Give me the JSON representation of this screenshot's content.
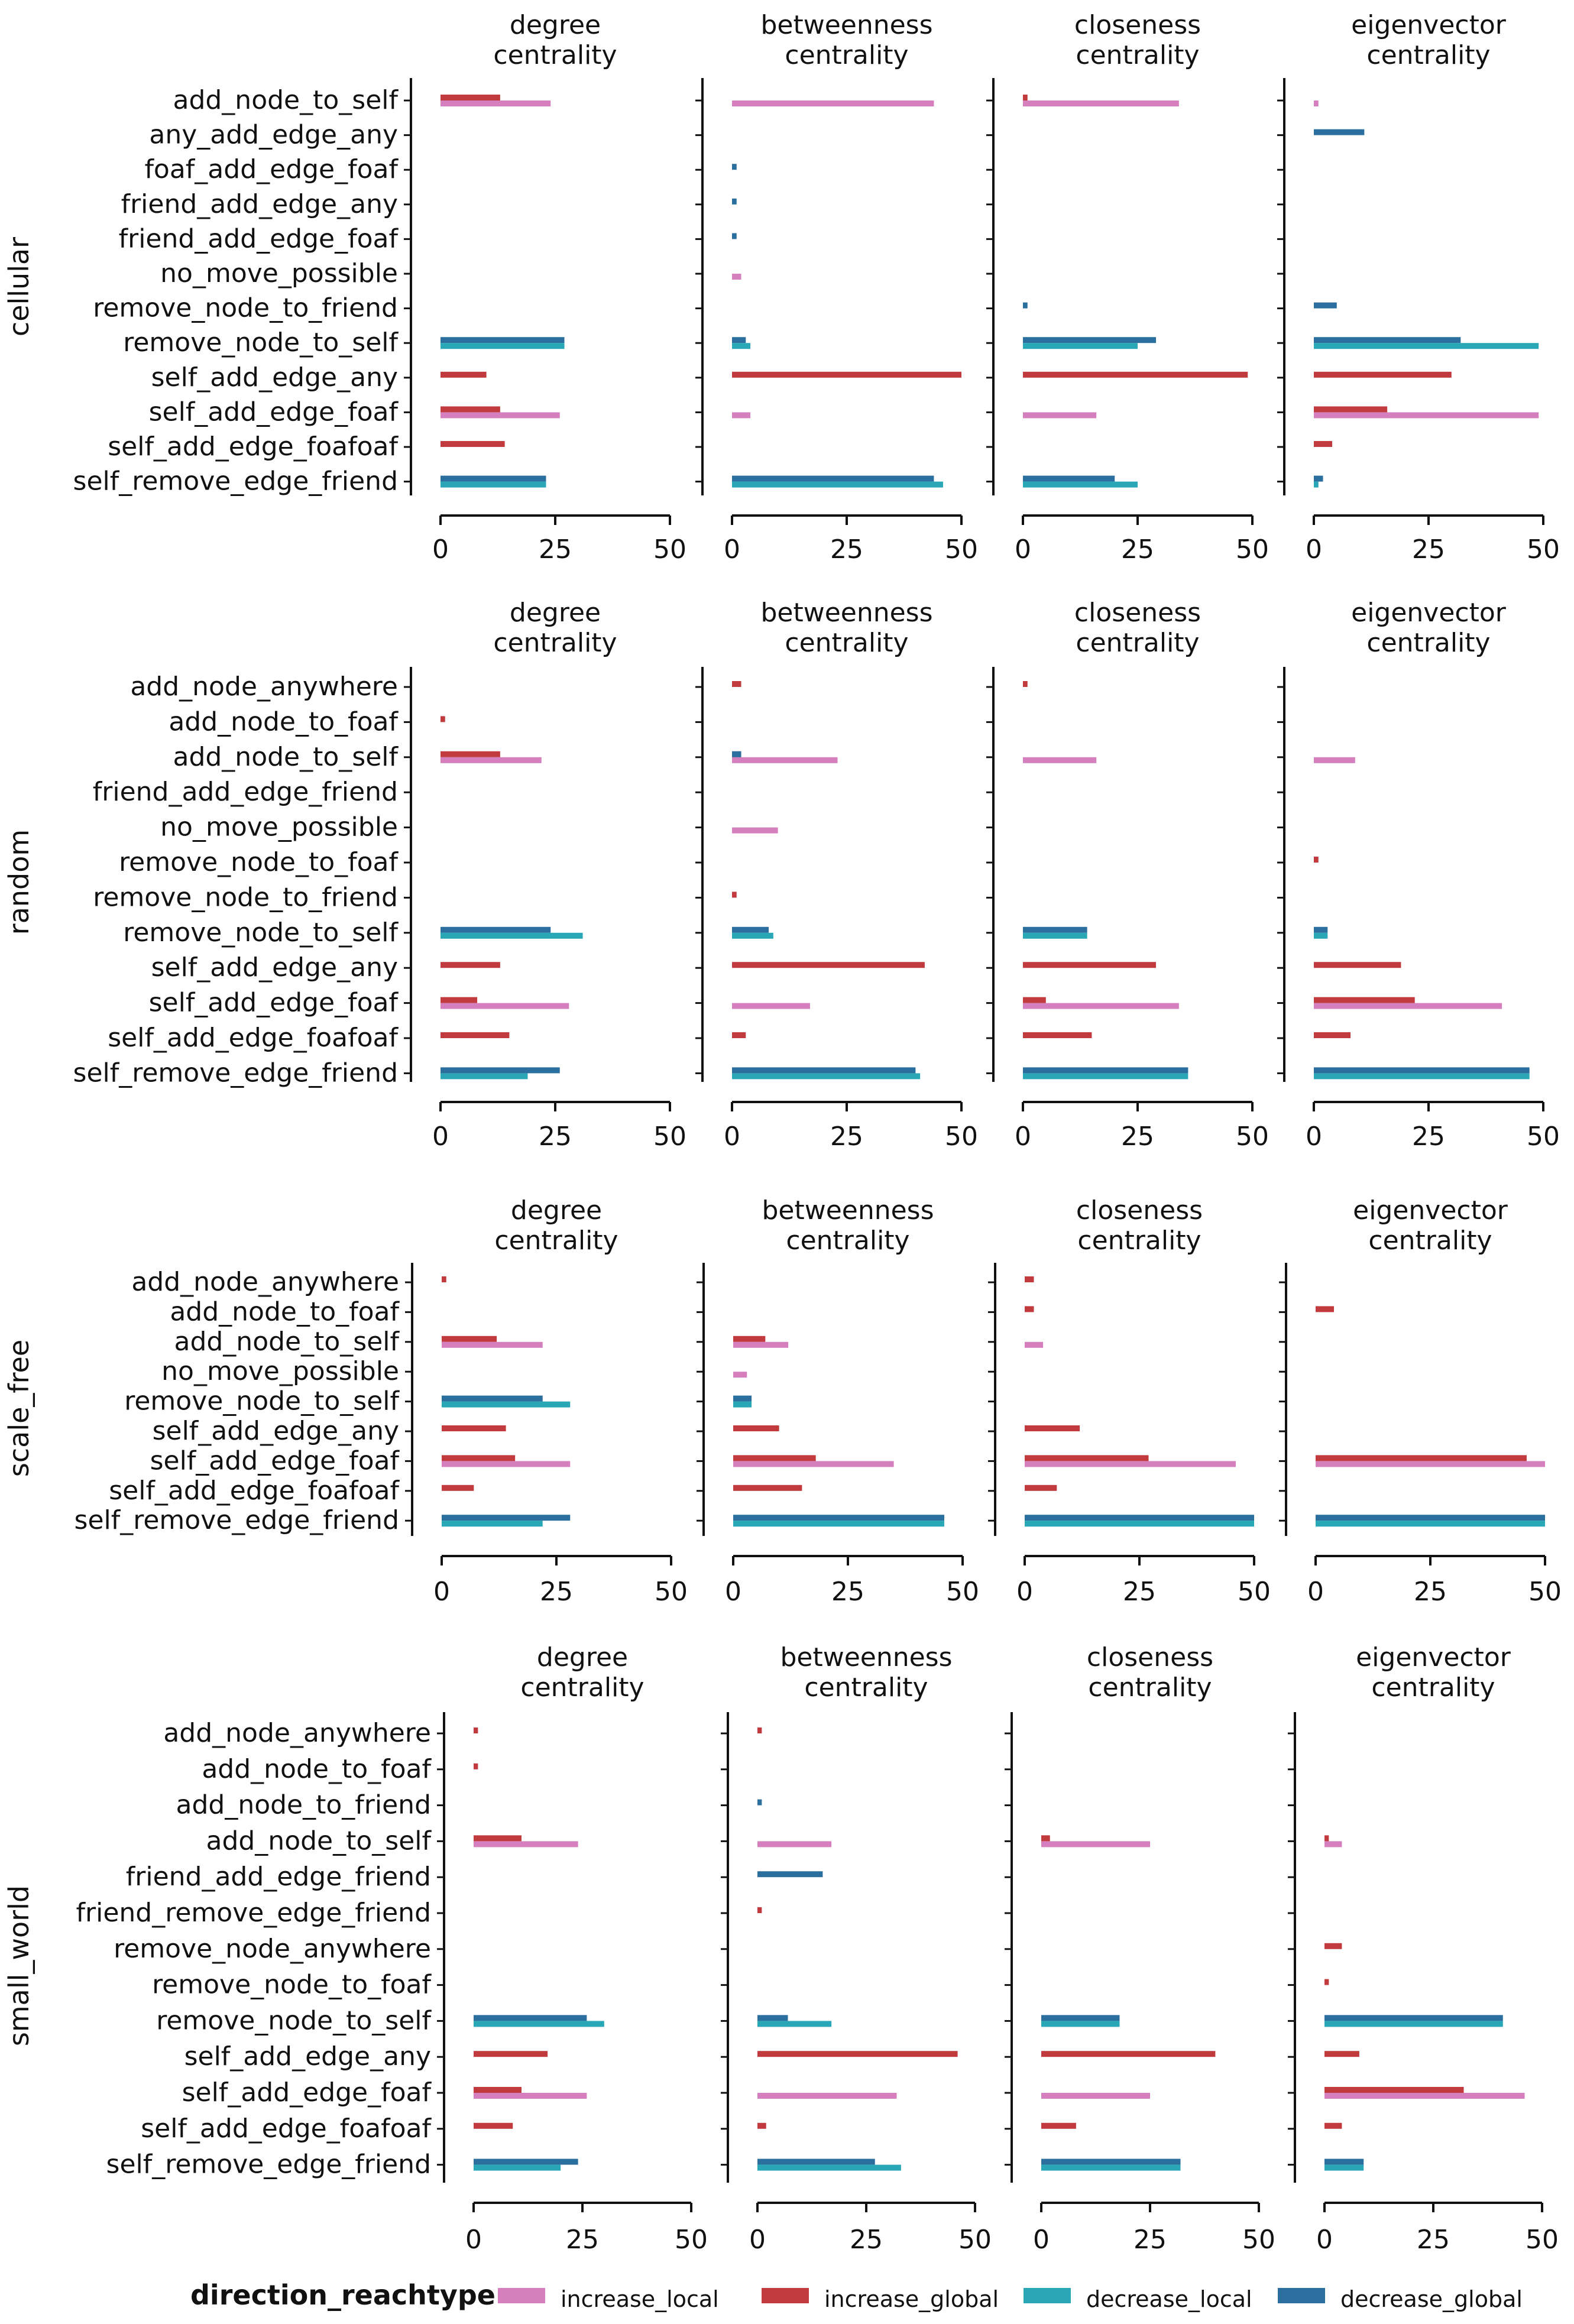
{
  "chart_data": {
    "type": "bar",
    "orientation": "horizontal",
    "x_range": [
      0,
      50
    ],
    "x_ticks": [
      0,
      25,
      50
    ],
    "panel_titles": [
      [
        "degree",
        "centrality"
      ],
      [
        "betweenness",
        "centrality"
      ],
      [
        "closeness",
        "centrality"
      ],
      [
        "eigenvector",
        "centrality"
      ]
    ],
    "series_order": [
      "increase_global",
      "increase_local",
      "decrease_global",
      "decrease_local"
    ],
    "colors": {
      "increase_local": "#d57fbe",
      "increase_global": "#c03a3e",
      "decrease_local": "#2aa7b7",
      "decrease_global": "#2b6f9f"
    },
    "legend": {
      "title": "direction_reachtype",
      "position": "bottom",
      "entries": [
        {
          "key": "increase_local",
          "label": "increase_local"
        },
        {
          "key": "increase_global",
          "label": "increase_global"
        },
        {
          "key": "decrease_local",
          "label": "decrease_local"
        },
        {
          "key": "decrease_global",
          "label": "decrease_global"
        }
      ]
    },
    "rows": [
      {
        "name": "cellular",
        "categories": [
          "add_node_to_self",
          "any_add_edge_any",
          "foaf_add_edge_foaf",
          "friend_add_edge_any",
          "friend_add_edge_foaf",
          "no_move_possible",
          "remove_node_to_friend",
          "remove_node_to_self",
          "self_add_edge_any",
          "self_add_edge_foaf",
          "self_add_edge_foafoaf",
          "self_remove_edge_friend"
        ],
        "panels": [
          {
            "increase_global": [
              13,
              0,
              0,
              0,
              0,
              0,
              0,
              0,
              10,
              13,
              14,
              0
            ],
            "increase_local": [
              24,
              0,
              0,
              0,
              0,
              0,
              0,
              0,
              0,
              26,
              0,
              0
            ],
            "decrease_global": [
              0,
              0,
              0,
              0,
              0,
              0,
              0,
              27,
              0,
              0,
              0,
              23
            ],
            "decrease_local": [
              0,
              0,
              0,
              0,
              0,
              0,
              0,
              27,
              0,
              0,
              0,
              23
            ]
          },
          {
            "increase_global": [
              0,
              0,
              0,
              0,
              0,
              0,
              0,
              0,
              50,
              0,
              0,
              0
            ],
            "increase_local": [
              44,
              0,
              0,
              0,
              0,
              2,
              0,
              0,
              0,
              4,
              0,
              0
            ],
            "decrease_global": [
              0,
              0,
              1,
              1,
              1,
              0,
              0,
              3,
              0,
              0,
              0,
              44
            ],
            "decrease_local": [
              0,
              0,
              0,
              0,
              0,
              0,
              0,
              4,
              0,
              0,
              0,
              46
            ]
          },
          {
            "increase_global": [
              1,
              0,
              0,
              0,
              0,
              0,
              0,
              0,
              49,
              0,
              0,
              0
            ],
            "increase_local": [
              34,
              0,
              0,
              0,
              0,
              0,
              0,
              0,
              0,
              16,
              0,
              0
            ],
            "decrease_global": [
              0,
              0,
              0,
              0,
              0,
              0,
              1,
              29,
              0,
              0,
              0,
              20
            ],
            "decrease_local": [
              0,
              0,
              0,
              0,
              0,
              0,
              0,
              25,
              0,
              0,
              0,
              25
            ]
          },
          {
            "increase_global": [
              0,
              0,
              0,
              0,
              0,
              0,
              0,
              0,
              30,
              16,
              4,
              0
            ],
            "increase_local": [
              1,
              0,
              0,
              0,
              0,
              0,
              0,
              0,
              0,
              49,
              0,
              0
            ],
            "decrease_global": [
              0,
              11,
              0,
              0,
              0,
              0,
              5,
              32,
              0,
              0,
              0,
              2
            ],
            "decrease_local": [
              0,
              0,
              0,
              0,
              0,
              0,
              0,
              49,
              0,
              0,
              0,
              1
            ]
          }
        ]
      },
      {
        "name": "random",
        "categories": [
          "add_node_anywhere",
          "add_node_to_foaf",
          "add_node_to_self",
          "friend_add_edge_friend",
          "no_move_possible",
          "remove_node_to_foaf",
          "remove_node_to_friend",
          "remove_node_to_self",
          "self_add_edge_any",
          "self_add_edge_foaf",
          "self_add_edge_foafoaf",
          "self_remove_edge_friend"
        ],
        "panels": [
          {
            "increase_global": [
              0,
              1,
              13,
              0,
              0,
              0,
              0,
              0,
              13,
              8,
              15,
              0
            ],
            "increase_local": [
              0,
              0,
              22,
              0,
              0,
              0,
              0,
              0,
              0,
              28,
              0,
              0
            ],
            "decrease_global": [
              0,
              0,
              0,
              0,
              0,
              0,
              0,
              24,
              0,
              0,
              0,
              26
            ],
            "decrease_local": [
              0,
              0,
              0,
              0,
              0,
              0,
              0,
              31,
              0,
              0,
              0,
              19
            ]
          },
          {
            "increase_global": [
              2,
              0,
              2,
              0,
              0,
              0,
              1,
              0,
              42,
              0,
              3,
              0
            ],
            "increase_local": [
              0,
              0,
              23,
              0,
              10,
              0,
              0,
              0,
              0,
              17,
              0,
              0
            ],
            "decrease_global": [
              0,
              0,
              2,
              0,
              0,
              0,
              0,
              8,
              0,
              0,
              0,
              40
            ],
            "decrease_local": [
              0,
              0,
              0,
              0,
              0,
              0,
              0,
              9,
              0,
              0,
              0,
              41
            ]
          },
          {
            "increase_global": [
              1,
              0,
              0,
              0,
              0,
              0,
              0,
              0,
              29,
              5,
              15,
              0
            ],
            "increase_local": [
              0,
              0,
              16,
              0,
              0,
              0,
              0,
              0,
              0,
              34,
              0,
              0
            ],
            "decrease_global": [
              0,
              0,
              0,
              0,
              0,
              0,
              0,
              14,
              0,
              0,
              0,
              36
            ],
            "decrease_local": [
              0,
              0,
              0,
              0,
              0,
              0,
              0,
              14,
              0,
              0,
              0,
              36
            ]
          },
          {
            "increase_global": [
              0,
              0,
              0,
              0,
              0,
              1,
              0,
              0,
              19,
              22,
              8,
              0
            ],
            "increase_local": [
              0,
              0,
              9,
              0,
              0,
              0,
              0,
              0,
              0,
              41,
              0,
              0
            ],
            "decrease_global": [
              0,
              0,
              0,
              0,
              0,
              0,
              0,
              3,
              0,
              0,
              0,
              47
            ],
            "decrease_local": [
              0,
              0,
              0,
              0,
              0,
              0,
              0,
              3,
              0,
              0,
              0,
              47
            ]
          }
        ]
      },
      {
        "name": "scale_free",
        "categories": [
          "add_node_anywhere",
          "add_node_to_foaf",
          "add_node_to_self",
          "no_move_possible",
          "remove_node_to_self",
          "self_add_edge_any",
          "self_add_edge_foaf",
          "self_add_edge_foafoaf",
          "self_remove_edge_friend"
        ],
        "panels": [
          {
            "increase_global": [
              1,
              0,
              12,
              0,
              0,
              14,
              16,
              7,
              0
            ],
            "increase_local": [
              0,
              0,
              22,
              0,
              0,
              0,
              28,
              0,
              0
            ],
            "decrease_global": [
              0,
              0,
              0,
              0,
              22,
              0,
              0,
              0,
              28
            ],
            "decrease_local": [
              0,
              0,
              0,
              0,
              28,
              0,
              0,
              0,
              22
            ]
          },
          {
            "increase_global": [
              0,
              0,
              7,
              0,
              0,
              10,
              18,
              15,
              0
            ],
            "increase_local": [
              0,
              0,
              12,
              3,
              0,
              0,
              35,
              0,
              0
            ],
            "decrease_global": [
              0,
              0,
              0,
              0,
              4,
              0,
              0,
              0,
              46
            ],
            "decrease_local": [
              0,
              0,
              0,
              0,
              4,
              0,
              0,
              0,
              46
            ]
          },
          {
            "increase_global": [
              2,
              2,
              0,
              0,
              0,
              12,
              27,
              7,
              0
            ],
            "increase_local": [
              0,
              0,
              4,
              0,
              0,
              0,
              46,
              0,
              0
            ],
            "decrease_global": [
              0,
              0,
              0,
              0,
              0,
              0,
              0,
              0,
              50
            ],
            "decrease_local": [
              0,
              0,
              0,
              0,
              0,
              0,
              0,
              0,
              50
            ]
          },
          {
            "increase_global": [
              0,
              4,
              0,
              0,
              0,
              0,
              46,
              0,
              0
            ],
            "increase_local": [
              0,
              0,
              0,
              0,
              0,
              0,
              50,
              0,
              0
            ],
            "decrease_global": [
              0,
              0,
              0,
              0,
              0,
              0,
              0,
              0,
              50
            ],
            "decrease_local": [
              0,
              0,
              0,
              0,
              0,
              0,
              0,
              0,
              50
            ]
          }
        ]
      },
      {
        "name": "small_world",
        "categories": [
          "add_node_anywhere",
          "add_node_to_foaf",
          "add_node_to_friend",
          "add_node_to_self",
          "friend_add_edge_friend",
          "friend_remove_edge_friend",
          "remove_node_anywhere",
          "remove_node_to_foaf",
          "remove_node_to_self",
          "self_add_edge_any",
          "self_add_edge_foaf",
          "self_add_edge_foafoaf",
          "self_remove_edge_friend"
        ],
        "panels": [
          {
            "increase_global": [
              1,
              1,
              0,
              11,
              0,
              0,
              0,
              0,
              0,
              17,
              11,
              9,
              0
            ],
            "increase_local": [
              0,
              0,
              0,
              24,
              0,
              0,
              0,
              0,
              0,
              0,
              26,
              0,
              0
            ],
            "decrease_global": [
              0,
              0,
              0,
              0,
              0,
              0,
              0,
              0,
              26,
              0,
              0,
              0,
              24
            ],
            "decrease_local": [
              0,
              0,
              0,
              0,
              0,
              0,
              0,
              0,
              30,
              0,
              0,
              0,
              20
            ]
          },
          {
            "increase_global": [
              1,
              0,
              0,
              0,
              0,
              1,
              0,
              0,
              0,
              46,
              0,
              2,
              0
            ],
            "increase_local": [
              0,
              0,
              0,
              17,
              0,
              0,
              0,
              0,
              1,
              0,
              32,
              0,
              0
            ],
            "decrease_global": [
              0,
              0,
              1,
              0,
              15,
              0,
              0,
              0,
              7,
              0,
              0,
              0,
              27
            ],
            "decrease_local": [
              0,
              0,
              0,
              0,
              0,
              0,
              0,
              0,
              17,
              0,
              0,
              0,
              33
            ]
          },
          {
            "increase_global": [
              0,
              0,
              0,
              2,
              0,
              0,
              0,
              0,
              0,
              40,
              0,
              8,
              0
            ],
            "increase_local": [
              0,
              0,
              0,
              25,
              0,
              0,
              0,
              0,
              0,
              0,
              25,
              0,
              0
            ],
            "decrease_global": [
              0,
              0,
              0,
              0,
              0,
              0,
              0,
              0,
              18,
              0,
              0,
              0,
              32
            ],
            "decrease_local": [
              0,
              0,
              0,
              0,
              0,
              0,
              0,
              0,
              18,
              0,
              0,
              0,
              32
            ]
          },
          {
            "increase_global": [
              0,
              0,
              0,
              1,
              0,
              0,
              4,
              1,
              0,
              8,
              32,
              4,
              0
            ],
            "increase_local": [
              0,
              0,
              0,
              4,
              0,
              0,
              0,
              0,
              0,
              0,
              46,
              0,
              0
            ],
            "decrease_global": [
              0,
              0,
              0,
              0,
              0,
              0,
              0,
              0,
              41,
              0,
              0,
              0,
              9
            ],
            "decrease_local": [
              0,
              0,
              0,
              0,
              0,
              0,
              0,
              0,
              41,
              0,
              0,
              0,
              9
            ]
          }
        ]
      }
    ]
  }
}
